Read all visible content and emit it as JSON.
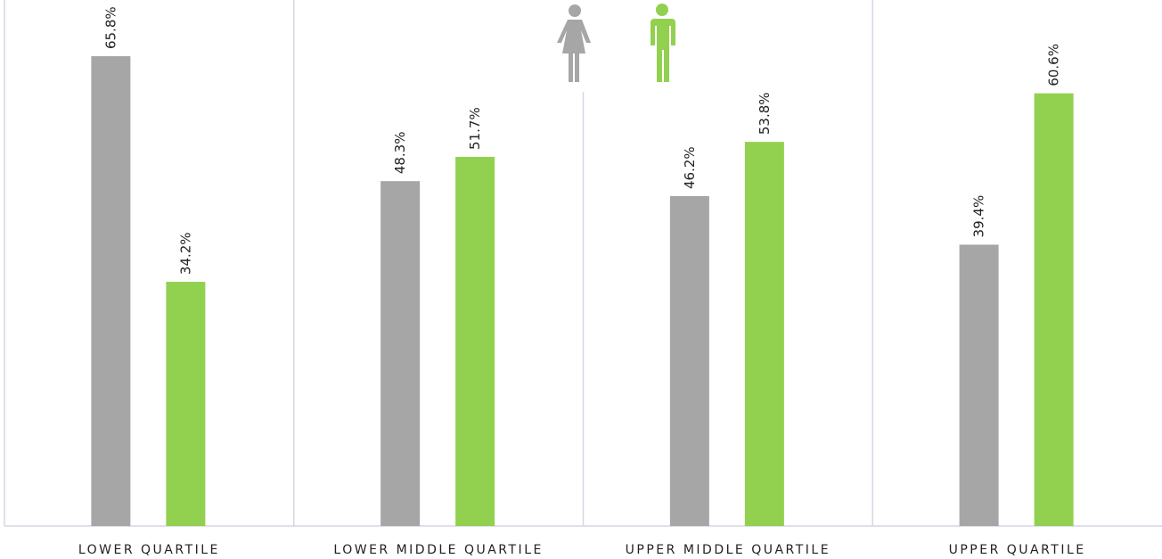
{
  "chart_data": {
    "type": "bar",
    "categories": [
      "LOWER QUARTILE",
      "LOWER MIDDLE QUARTILE",
      "UPPER MIDDLE QUARTILE",
      "UPPER QUARTILE"
    ],
    "series": [
      {
        "color": "#a6a6a6",
        "values": [
          65.8,
          48.3,
          46.2,
          39.4
        ],
        "value_labels": [
          "65.8%",
          "48.3%",
          "46.2%",
          "39.4%"
        ]
      },
      {
        "color": "#92d050",
        "values": [
          34.2,
          51.7,
          53.8,
          60.6
        ],
        "value_labels": [
          "34.2%",
          "51.7%",
          "53.8%",
          "60.6%"
        ]
      }
    ],
    "ylim": [
      0,
      73.67
    ]
  }
}
